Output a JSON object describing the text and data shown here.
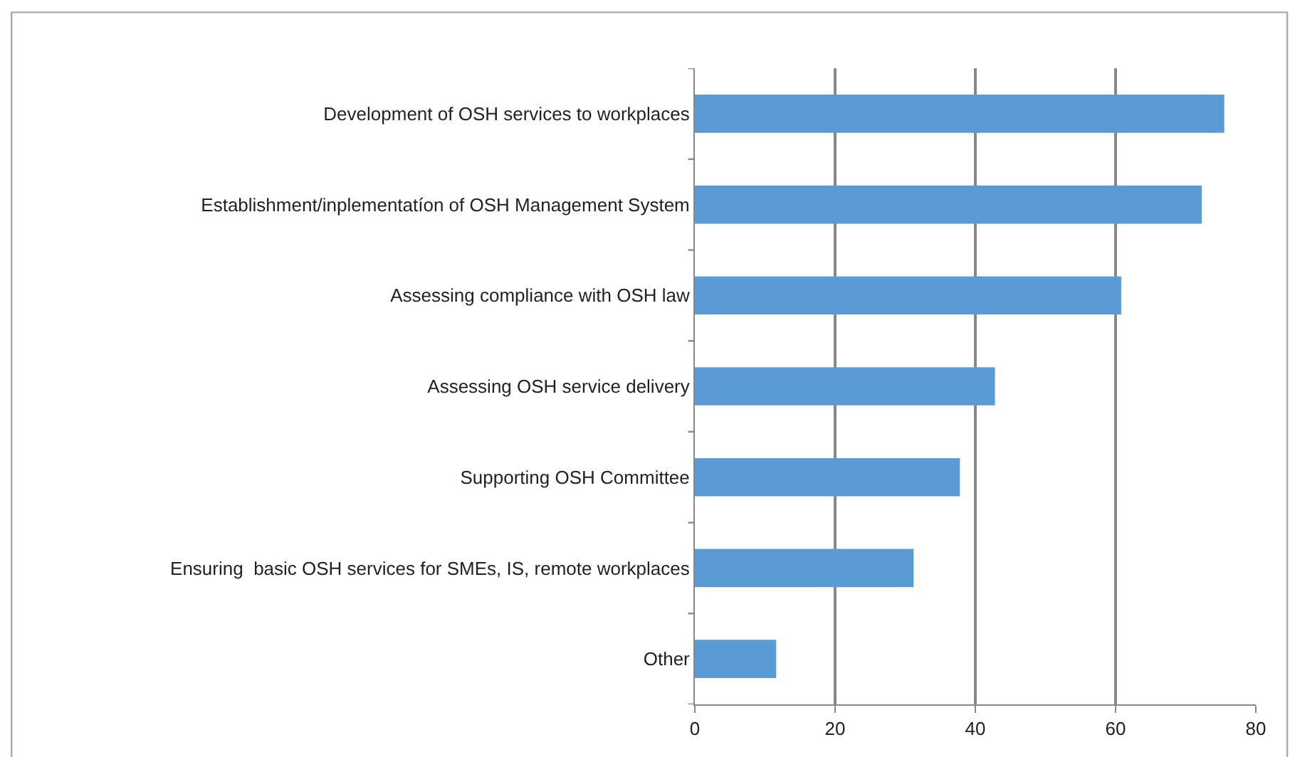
{
  "chart_data": {
    "type": "bar",
    "orientation": "horizontal",
    "categories": [
      "Development of OSH services to workplaces",
      "Establishment/inplementatíon of OSH Management System",
      "Assessing compliance with OSH law",
      "Assessing OSH service delivery",
      "Supporting OSH Committee",
      "Ensuring  basic OSH services for SMEs, IS, remote workplaces",
      "Other"
    ],
    "values": [
      75.5,
      72.3,
      60.8,
      42.8,
      37.8,
      31.2,
      11.6
    ],
    "color": "#5b9bd5",
    "xlim": [
      0,
      80
    ],
    "xticks": [
      0,
      20,
      40,
      60,
      80
    ],
    "grid": "x"
  }
}
